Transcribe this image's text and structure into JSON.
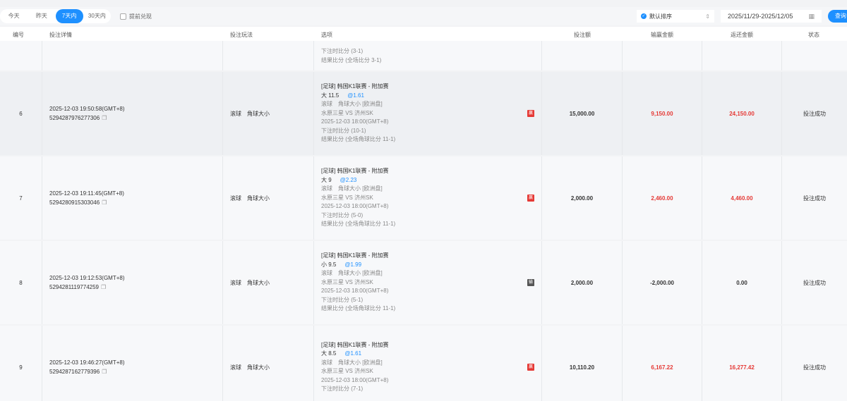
{
  "filter": {
    "ranges": [
      "今天",
      "昨天",
      "7天内",
      "30天内"
    ],
    "active": "7天内",
    "checkbox_label": "提前兑现",
    "sort_label": "默认排序",
    "date_range": "2025/11/29-2025/12/05",
    "query_label": "查询"
  },
  "colors": {
    "accent": "#1e90ff",
    "win": "#e53935",
    "lose": "#555555"
  },
  "columns": [
    "编号",
    "投注详情",
    "投注玩法",
    "选项",
    "投注额",
    "输赢金额",
    "返还金额",
    "状态"
  ],
  "partial_row": {
    "lines": [
      "下注时比分 (3-1)",
      "结果比分 (全场比分 3-1)"
    ]
  },
  "rows": [
    {
      "no": "6",
      "time": "2025-12-03 19:50:58(GMT+8)",
      "order": "5294287976277306",
      "play": "滚球　角球大小",
      "league": "[足球] 韩国K1联赛 - 附加赛",
      "pick": "大 11.5",
      "odds": "@1.61",
      "market": "滚球　角球大小 [欧洲盘]",
      "match": "水原三星 VS 济州SK",
      "kickoff": "2025-12-03 18:00(GMT+8)",
      "bet_score": "下注时比分 (10-1)",
      "result": "结果比分 (全场角球比分 11-1)",
      "badge": "赢",
      "stake": "15,000.00",
      "winloss": "9,150.00",
      "return": "24,150.00",
      "status": "投注成功"
    },
    {
      "no": "7",
      "time": "2025-12-03 19:11:45(GMT+8)",
      "order": "5294280915303046",
      "play": "滚球　角球大小",
      "league": "[足球] 韩国K1联赛 - 附加赛",
      "pick": "大 9",
      "odds": "@2.23",
      "market": "滚球　角球大小 [欧洲盘]",
      "match": "水原三星 VS 济州SK",
      "kickoff": "2025-12-03 18:00(GMT+8)",
      "bet_score": "下注时比分 (5-0)",
      "result": "结果比分 (全场角球比分 11-1)",
      "badge": "赢",
      "stake": "2,000.00",
      "winloss": "2,460.00",
      "return": "4,460.00",
      "status": "投注成功"
    },
    {
      "no": "8",
      "time": "2025-12-03 19:12:53(GMT+8)",
      "order": "5294281119774259",
      "play": "滚球　角球大小",
      "league": "[足球] 韩国K1联赛 - 附加赛",
      "pick": "小 9.5",
      "odds": "@1.99",
      "market": "滚球　角球大小 [欧洲盘]",
      "match": "水原三星 VS 济州SK",
      "kickoff": "2025-12-03 18:00(GMT+8)",
      "bet_score": "下注时比分 (5-1)",
      "result": "结果比分 (全场角球比分 11-1)",
      "badge": "输",
      "stake": "2,000.00",
      "winloss": "-2,000.00",
      "return": "0.00",
      "status": "投注成功"
    },
    {
      "no": "9",
      "time": "2025-12-03 19:46:27(GMT+8)",
      "order": "5294287162779396",
      "play": "滚球　角球大小",
      "league": "[足球] 韩国K1联赛 - 附加赛",
      "pick": "大 8.5",
      "odds": "@1.61",
      "market": "滚球　角球大小 [欧洲盘]",
      "match": "水原三星 VS 济州SK",
      "kickoff": "2025-12-03 18:00(GMT+8)",
      "bet_score": "下注时比分 (7-1)",
      "result": "",
      "badge": "赢",
      "stake": "10,110.20",
      "winloss": "6,167.22",
      "return": "16,277.42",
      "status": "投注成功"
    }
  ]
}
